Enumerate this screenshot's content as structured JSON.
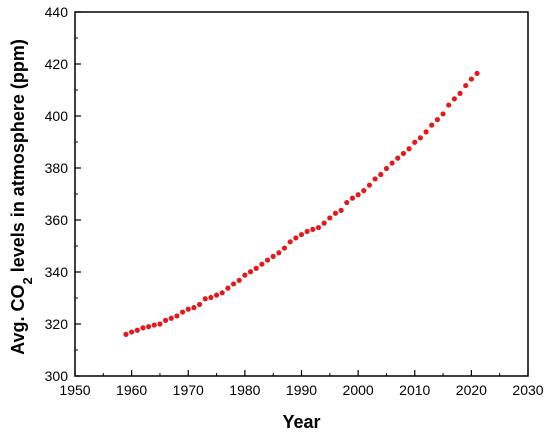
{
  "chart_data": {
    "type": "scatter",
    "xlabel": "Year",
    "ylabel": {
      "prefix": "Avg. CO",
      "subscript": "2",
      "suffix": " levels in atmosphere (ppm)"
    },
    "xlim": [
      1950,
      2030
    ],
    "ylim": [
      300,
      440
    ],
    "xticks": [
      1950,
      1960,
      1970,
      1980,
      1990,
      2000,
      2010,
      2020,
      2030
    ],
    "yticks": [
      300,
      320,
      340,
      360,
      380,
      400,
      420,
      440
    ],
    "grid": false,
    "marker_color": "#e31a1c",
    "series": [
      {
        "x": [
          1959,
          1960,
          1961,
          1962,
          1963,
          1964,
          1965,
          1966,
          1967,
          1968,
          1969,
          1970,
          1971,
          1972,
          1973,
          1974,
          1975,
          1976,
          1977,
          1978,
          1979,
          1980,
          1981,
          1982,
          1983,
          1984,
          1985,
          1986,
          1987,
          1988,
          1989,
          1990,
          1991,
          1992,
          1993,
          1994,
          1995,
          1996,
          1997,
          1998,
          1999,
          2000,
          2001,
          2002,
          2003,
          2004,
          2005,
          2006,
          2007,
          2008,
          2009,
          2010,
          2011,
          2012,
          2013,
          2014,
          2015,
          2016,
          2017,
          2018,
          2019,
          2020,
          2021
        ],
        "y": [
          316.0,
          316.9,
          317.6,
          318.5,
          319.0,
          319.6,
          320.0,
          321.4,
          322.2,
          323.1,
          324.6,
          325.7,
          326.3,
          327.5,
          329.7,
          330.2,
          331.1,
          332.0,
          333.8,
          335.4,
          336.8,
          338.8,
          340.1,
          341.4,
          343.0,
          344.6,
          346.0,
          347.4,
          349.2,
          351.6,
          353.1,
          354.4,
          355.6,
          356.4,
          357.1,
          358.8,
          360.8,
          362.6,
          363.7,
          366.7,
          368.4,
          369.7,
          371.3,
          373.4,
          375.8,
          377.5,
          379.8,
          381.9,
          383.8,
          385.6,
          387.4,
          389.9,
          391.6,
          393.9,
          396.5,
          398.6,
          400.8,
          404.2,
          406.6,
          408.7,
          411.7,
          414.2,
          416.4
        ]
      }
    ]
  }
}
